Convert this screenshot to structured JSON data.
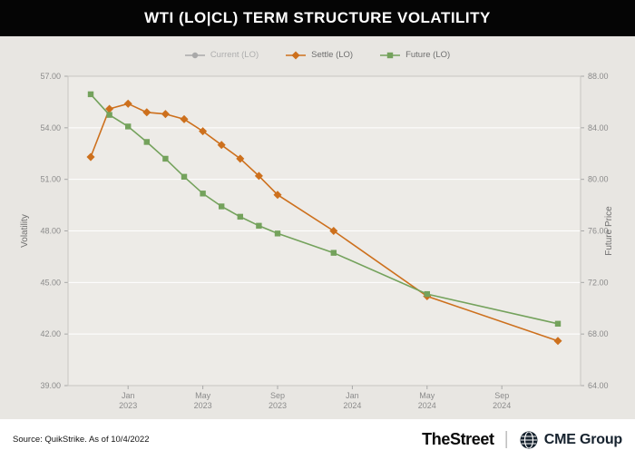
{
  "title": "WTI (LO|CL) TERM STRUCTURE VOLATILITY",
  "legend": [
    {
      "label": "Current (LO)",
      "color": "#a9a9a9",
      "marker": "circle",
      "disabled": true
    },
    {
      "label": "Settle (LO)",
      "color": "#cd701d",
      "marker": "diamond",
      "disabled": false
    },
    {
      "label": "Future (LO)",
      "color": "#74a25c",
      "marker": "square",
      "disabled": false
    }
  ],
  "chart_data": {
    "type": "line",
    "title": "WTI (LO|CL) TERM STRUCTURE VOLATILITY",
    "grid": "horizontal-only",
    "legend_position": "top-center",
    "x_axis": {
      "month_index_origin": "Nov 2022",
      "tick_month_indices": [
        2,
        6,
        10,
        14,
        18,
        22
      ],
      "tick_labels": [
        [
          "Jan",
          "2023"
        ],
        [
          "May",
          "2023"
        ],
        [
          "Sep",
          "2023"
        ],
        [
          "Jan",
          "2024"
        ],
        [
          "May",
          "2024"
        ],
        [
          "Sep",
          "2024"
        ]
      ]
    },
    "left_axis": {
      "label": "Volatility",
      "range": [
        39,
        57
      ],
      "ticks": [
        39,
        42,
        45,
        48,
        51,
        54,
        57
      ],
      "tick_labels": [
        "39.00",
        "42.00",
        "45.00",
        "48.00",
        "51.00",
        "54.00",
        "57.00"
      ]
    },
    "right_axis": {
      "label": "Future Price",
      "range": [
        64,
        88
      ],
      "ticks": [
        64,
        68,
        72,
        76,
        80,
        84,
        88
      ],
      "tick_labels": [
        "64.00",
        "68.00",
        "72.00",
        "76.00",
        "80.00",
        "84.00",
        "88.00"
      ]
    },
    "series": [
      {
        "name": "Settle (LO)",
        "axis": "left",
        "color": "#cd701d",
        "marker": "diamond",
        "points": [
          [
            0,
            52.3
          ],
          [
            1,
            55.1
          ],
          [
            2,
            55.4
          ],
          [
            3,
            54.9
          ],
          [
            4,
            54.8
          ],
          [
            5,
            54.5
          ],
          [
            6,
            53.8
          ],
          [
            7,
            53.0
          ],
          [
            8,
            52.2
          ],
          [
            9,
            51.2
          ],
          [
            10,
            50.1
          ],
          [
            13,
            48.0
          ],
          [
            18,
            44.2
          ],
          [
            25,
            41.6
          ]
        ]
      },
      {
        "name": "Future (LO)",
        "axis": "right",
        "color": "#74a25c",
        "marker": "square",
        "points": [
          [
            0,
            86.6
          ],
          [
            1,
            85.0
          ],
          [
            2,
            84.1
          ],
          [
            3,
            82.9
          ],
          [
            4,
            81.6
          ],
          [
            5,
            80.2
          ],
          [
            6,
            78.9
          ],
          [
            7,
            77.9
          ],
          [
            8,
            77.1
          ],
          [
            9,
            76.4
          ],
          [
            10,
            75.8
          ],
          [
            13,
            74.3
          ],
          [
            18,
            71.1
          ],
          [
            25,
            68.8
          ]
        ]
      }
    ]
  },
  "footer": {
    "source": "Source: QuikStrike. As of 10/4/2022",
    "brand1": "TheStreet",
    "separator": "|",
    "brand2": "CME Group"
  }
}
